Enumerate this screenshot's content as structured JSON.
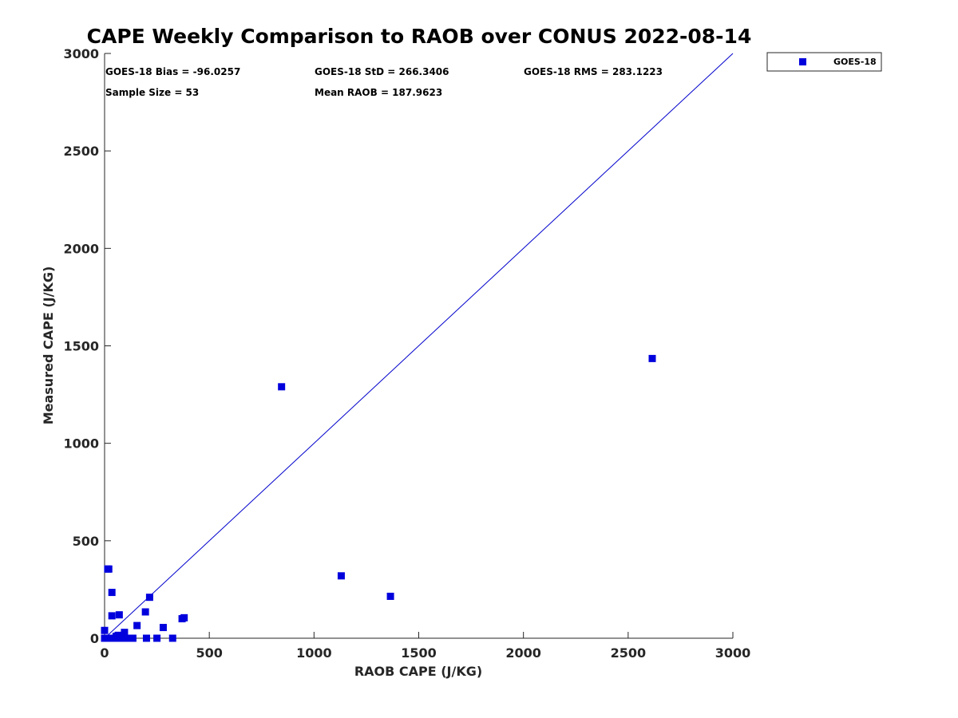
{
  "chart_data": {
    "type": "scatter",
    "title": "CAPE Weekly Comparison to RAOB over CONUS 2022-08-14",
    "xlabel": "RAOB CAPE (J/KG)",
    "ylabel": "Measured CAPE (J/KG)",
    "xlim": [
      0,
      3000
    ],
    "ylim": [
      0,
      3000
    ],
    "xticks": [
      0,
      500,
      1000,
      1500,
      2000,
      2500,
      3000
    ],
    "yticks": [
      0,
      500,
      1000,
      1500,
      2000,
      2500,
      3000
    ],
    "xtick_labels": [
      "0",
      "500",
      "1000",
      "1500",
      "2000",
      "2500",
      "3000"
    ],
    "ytick_labels": [
      "0",
      "500",
      "1000",
      "1500",
      "2000",
      "2500",
      "3000"
    ],
    "grid": false,
    "legend_position": "outside-top-right",
    "reference_line": {
      "from": [
        0,
        0
      ],
      "to": [
        3000,
        3000
      ],
      "color": "#0000cc"
    },
    "series": [
      {
        "name": "GOES-18",
        "color": "#0000dd",
        "marker": "square",
        "points": [
          [
            0,
            0
          ],
          [
            5,
            0
          ],
          [
            10,
            0
          ],
          [
            15,
            0
          ],
          [
            20,
            0
          ],
          [
            25,
            0
          ],
          [
            30,
            0
          ],
          [
            40,
            0
          ],
          [
            50,
            0
          ],
          [
            60,
            0
          ],
          [
            70,
            0
          ],
          [
            80,
            0
          ],
          [
            90,
            0
          ],
          [
            100,
            0
          ],
          [
            110,
            0
          ],
          [
            120,
            0
          ],
          [
            135,
            0
          ],
          [
            200,
            0
          ],
          [
            250,
            0
          ],
          [
            325,
            0
          ],
          [
            0,
            40
          ],
          [
            55,
            10
          ],
          [
            65,
            15
          ],
          [
            75,
            8
          ],
          [
            85,
            5
          ],
          [
            95,
            30
          ],
          [
            15,
            355
          ],
          [
            20,
            355
          ],
          [
            35,
            235
          ],
          [
            35,
            115
          ],
          [
            70,
            120
          ],
          [
            155,
            65
          ],
          [
            195,
            135
          ],
          [
            215,
            210
          ],
          [
            280,
            55
          ],
          [
            370,
            100
          ],
          [
            380,
            105
          ],
          [
            845,
            1290
          ],
          [
            1130,
            320
          ],
          [
            1365,
            215
          ],
          [
            2615,
            1435
          ]
        ]
      }
    ],
    "annotations": [
      "GOES-18 Bias = -96.0257",
      "GOES-18 StD = 266.3406",
      "GOES-18 RMS = 283.1223",
      "Sample Size = 53",
      "Mean RAOB = 187.9623"
    ]
  }
}
